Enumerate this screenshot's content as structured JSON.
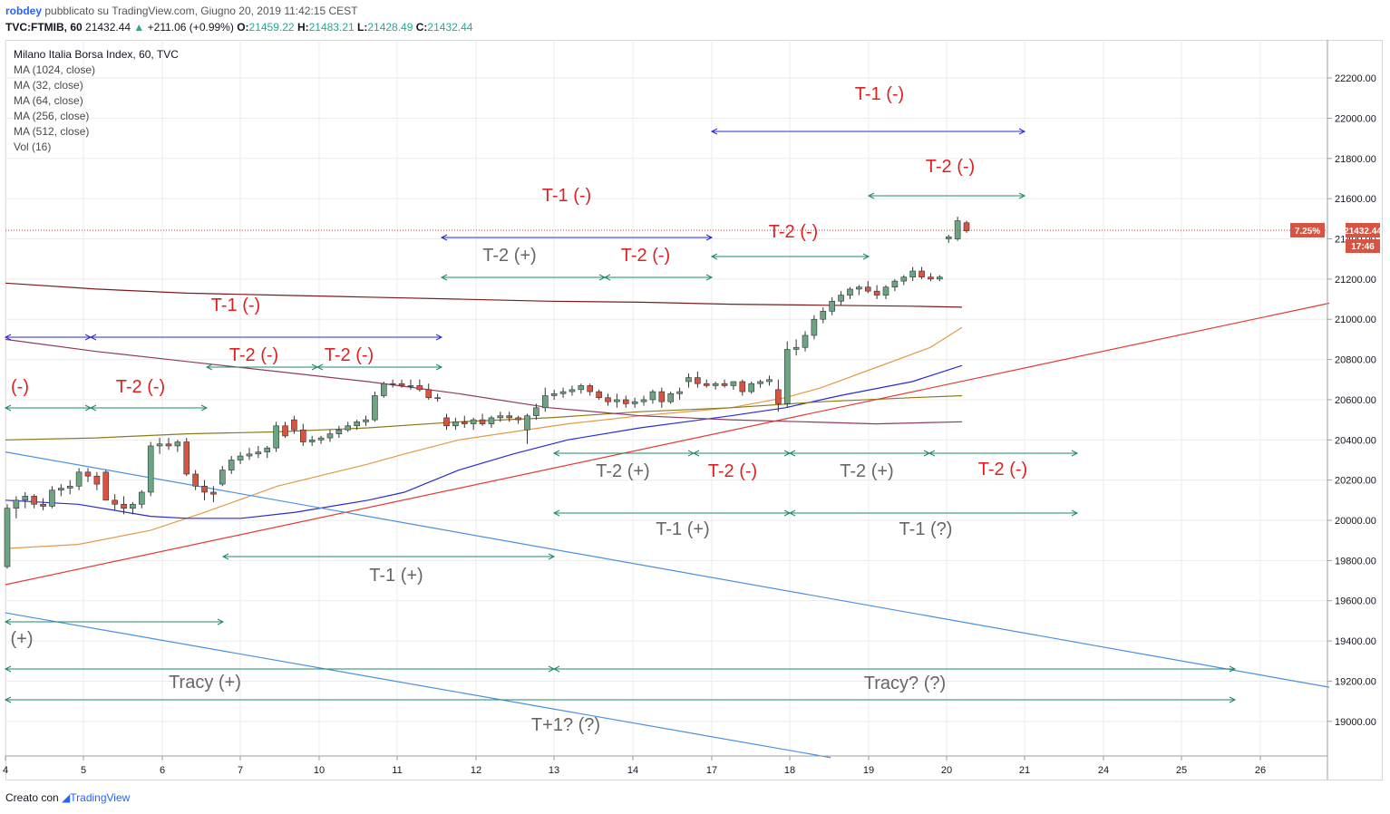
{
  "header": {
    "author": "robdey",
    "published": "pubblicato su TradingView.com, Giugno 20, 2019 11:42:15 CEST"
  },
  "quote": {
    "symbol": "TVC:FTMIB, 60",
    "last": "21432.44",
    "arrow": "▲",
    "change": "+211.06 (+0.99%)",
    "o_label": "O:",
    "o": "21459.22",
    "h_label": "H:",
    "h": "21483.21",
    "l_label": "L:",
    "l": "21428.49",
    "c_label": "C:",
    "c": "21432.44"
  },
  "legend": {
    "title": "Milano Italia Borsa Index, 60, TVC",
    "items": [
      "MA (1024, close)",
      "MA (32, close)",
      "MA (64, close)",
      "MA (256, close)",
      "MA (512, close)",
      "Vol (16)"
    ]
  },
  "price_tag": {
    "pct": "7.25%",
    "price": "21432.44",
    "countdown": "17:46"
  },
  "footer": {
    "prefix": "Creato con",
    "brand": "TradingView"
  },
  "colors": {
    "up": "#6ba583",
    "down": "#d75442",
    "grid": "#ebebeb",
    "ma1024": "#7b1c1c",
    "ma32": "#e39a45",
    "ma64": "#2a2ad6",
    "ma256": "#8b7a1a",
    "ma512": "#8e3a64",
    "trend_red": "#e53935",
    "trend_blue": "#4a90e2",
    "ann_red": "#e02020",
    "ann_gray": "#666666",
    "arrow_green": "#1e8a64",
    "arrow_blue": "#2a2ad6"
  },
  "chart_data": {
    "type": "candlestick",
    "title": "Milano Italia Borsa Index, 60, TVC",
    "x_ticks": [
      "4",
      "5",
      "6",
      "7",
      "10",
      "11",
      "12",
      "13",
      "14",
      "17",
      "18",
      "19",
      "20",
      "21",
      "24",
      "25",
      "26"
    ],
    "y_ticks": [
      "19000.00",
      "19200.00",
      "19400.00",
      "19600.00",
      "19800.00",
      "20000.00",
      "20200.00",
      "20400.00",
      "20600.00",
      "20800.00",
      "21000.00",
      "21200.00",
      "21400.00",
      "21600.00",
      "21800.00",
      "22000.00",
      "22200.00"
    ],
    "ylim": [
      18820,
      22350
    ],
    "last_price": 21432.44,
    "candles": [
      [
        19770,
        20080,
        19760,
        20060
      ],
      [
        20060,
        20120,
        20010,
        20100
      ],
      [
        20100,
        20140,
        20060,
        20120
      ],
      [
        20120,
        20130,
        20060,
        20080
      ],
      [
        20080,
        20110,
        20050,
        20070
      ],
      [
        20070,
        20170,
        20060,
        20150
      ],
      [
        20150,
        20180,
        20120,
        20160
      ],
      [
        20160,
        20200,
        20130,
        20170
      ],
      [
        20170,
        20260,
        20150,
        20240
      ],
      [
        20240,
        20260,
        20190,
        20220
      ],
      [
        20220,
        20240,
        20150,
        20180
      ],
      [
        20240,
        20250,
        20120,
        20100
      ],
      [
        20100,
        20130,
        20050,
        20080
      ],
      [
        20080,
        20120,
        20030,
        20060
      ],
      [
        20060,
        20090,
        20030,
        20080
      ],
      [
        20080,
        20150,
        20060,
        20140
      ],
      [
        20140,
        20390,
        20120,
        20370
      ],
      [
        20370,
        20410,
        20330,
        20380
      ],
      [
        20380,
        20410,
        20350,
        20370
      ],
      [
        20370,
        20400,
        20340,
        20390
      ],
      [
        20390,
        20410,
        20220,
        20230
      ],
      [
        20230,
        20250,
        20150,
        20170
      ],
      [
        20170,
        20200,
        20100,
        20140
      ],
      [
        20140,
        20170,
        20090,
        20130
      ],
      [
        20180,
        20270,
        20170,
        20250
      ],
      [
        20250,
        20320,
        20230,
        20300
      ],
      [
        20300,
        20340,
        20280,
        20320
      ],
      [
        20320,
        20360,
        20300,
        20330
      ],
      [
        20330,
        20370,
        20310,
        20340
      ],
      [
        20340,
        20370,
        20310,
        20360
      ],
      [
        20360,
        20490,
        20340,
        20470
      ],
      [
        20470,
        20490,
        20410,
        20420
      ],
      [
        20500,
        20520,
        20430,
        20450
      ],
      [
        20450,
        20480,
        20370,
        20390
      ],
      [
        20390,
        20420,
        20370,
        20400
      ],
      [
        20400,
        20420,
        20380,
        20410
      ],
      [
        20410,
        20450,
        20390,
        20430
      ],
      [
        20430,
        20470,
        20410,
        20450
      ],
      [
        20450,
        20490,
        20440,
        20470
      ],
      [
        20470,
        20500,
        20450,
        20490
      ],
      [
        20490,
        20520,
        20470,
        20500
      ],
      [
        20500,
        20640,
        20490,
        20620
      ],
      [
        20620,
        20690,
        20610,
        20680
      ],
      [
        20680,
        20700,
        20660,
        20680
      ],
      [
        20680,
        20700,
        20660,
        20670
      ],
      [
        20670,
        20700,
        20650,
        20670
      ],
      [
        20670,
        20700,
        20640,
        20650
      ],
      [
        20650,
        20680,
        20600,
        20610
      ],
      [
        20610,
        20630,
        20590,
        20610
      ],
      [
        20510,
        20530,
        20450,
        20470
      ],
      [
        20470,
        20510,
        20450,
        20490
      ],
      [
        20490,
        20520,
        20460,
        20480
      ],
      [
        20480,
        20510,
        20450,
        20500
      ],
      [
        20500,
        20530,
        20470,
        20480
      ],
      [
        20480,
        20520,
        20460,
        20510
      ],
      [
        20510,
        20540,
        20490,
        20520
      ],
      [
        20520,
        20540,
        20490,
        20510
      ],
      [
        20510,
        20520,
        20480,
        20500
      ],
      [
        20450,
        20530,
        20380,
        20520
      ],
      [
        20520,
        20580,
        20500,
        20560
      ],
      [
        20560,
        20660,
        20540,
        20620
      ],
      [
        20620,
        20650,
        20600,
        20630
      ],
      [
        20630,
        20660,
        20610,
        20640
      ],
      [
        20640,
        20670,
        20620,
        20650
      ],
      [
        20650,
        20680,
        20630,
        20670
      ],
      [
        20670,
        20680,
        20620,
        20640
      ],
      [
        20640,
        20650,
        20600,
        20610
      ],
      [
        20610,
        20630,
        20570,
        20590
      ],
      [
        20590,
        20630,
        20560,
        20600
      ],
      [
        20600,
        20620,
        20560,
        20580
      ],
      [
        20580,
        20610,
        20560,
        20590
      ],
      [
        20590,
        20620,
        20570,
        20600
      ],
      [
        20600,
        20650,
        20580,
        20640
      ],
      [
        20640,
        20660,
        20560,
        20590
      ],
      [
        20590,
        20640,
        20580,
        20630
      ],
      [
        20630,
        20660,
        20600,
        20640
      ],
      [
        20690,
        20730,
        20660,
        20710
      ],
      [
        20710,
        20740,
        20660,
        20680
      ],
      [
        20680,
        20700,
        20660,
        20670
      ],
      [
        20670,
        20690,
        20650,
        20680
      ],
      [
        20680,
        20700,
        20660,
        20670
      ],
      [
        20670,
        20690,
        20650,
        20690
      ],
      [
        20690,
        20700,
        20620,
        20640
      ],
      [
        20640,
        20690,
        20630,
        20680
      ],
      [
        20680,
        20700,
        20660,
        20690
      ],
      [
        20690,
        20720,
        20670,
        20700
      ],
      [
        20650,
        20700,
        20540,
        20580
      ],
      [
        20580,
        20890,
        20560,
        20850
      ],
      [
        20850,
        20900,
        20820,
        20860
      ],
      [
        20860,
        20940,
        20840,
        20920
      ],
      [
        20920,
        21020,
        20900,
        21000
      ],
      [
        21000,
        21060,
        20980,
        21040
      ],
      [
        21040,
        21110,
        21020,
        21090
      ],
      [
        21090,
        21140,
        21070,
        21120
      ],
      [
        21120,
        21160,
        21100,
        21150
      ],
      [
        21150,
        21170,
        21120,
        21160
      ],
      [
        21160,
        21190,
        21130,
        21140
      ],
      [
        21140,
        21170,
        21100,
        21120
      ],
      [
        21120,
        21170,
        21100,
        21160
      ],
      [
        21160,
        21200,
        21140,
        21190
      ],
      [
        21190,
        21220,
        21170,
        21210
      ],
      [
        21210,
        21260,
        21190,
        21240
      ],
      [
        21240,
        21260,
        21200,
        21210
      ],
      [
        21210,
        21230,
        21190,
        21200
      ],
      [
        21200,
        21220,
        21190,
        21210
      ],
      [
        21400,
        21420,
        21380,
        21410
      ],
      [
        21400,
        21510,
        21390,
        21490
      ],
      [
        21480,
        21490,
        21430,
        21440
      ]
    ],
    "moving_averages": [
      {
        "name": "MA (1024, close)",
        "points": [
          [
            0,
            21180
          ],
          [
            100,
            21150
          ],
          [
            200,
            21130
          ],
          [
            300,
            21120
          ],
          [
            400,
            21110
          ],
          [
            500,
            21100
          ],
          [
            600,
            21090
          ],
          [
            700,
            21085
          ],
          [
            800,
            21075
          ],
          [
            900,
            21070
          ],
          [
            1000,
            21065
          ],
          [
            1055,
            21060
          ]
        ]
      },
      {
        "name": "MA (32, close)",
        "points": [
          [
            0,
            19860
          ],
          [
            80,
            19880
          ],
          [
            160,
            19950
          ],
          [
            220,
            20040
          ],
          [
            300,
            20170
          ],
          [
            400,
            20280
          ],
          [
            440,
            20330
          ],
          [
            500,
            20400
          ],
          [
            560,
            20440
          ],
          [
            620,
            20480
          ],
          [
            700,
            20520
          ],
          [
            800,
            20560
          ],
          [
            860,
            20610
          ],
          [
            900,
            20660
          ],
          [
            960,
            20760
          ],
          [
            1020,
            20860
          ],
          [
            1055,
            20960
          ]
        ]
      },
      {
        "name": "MA (64, close)",
        "points": [
          [
            0,
            20100
          ],
          [
            80,
            20080
          ],
          [
            160,
            20020
          ],
          [
            200,
            20010
          ],
          [
            260,
            20010
          ],
          [
            320,
            20040
          ],
          [
            400,
            20100
          ],
          [
            440,
            20140
          ],
          [
            500,
            20250
          ],
          [
            560,
            20330
          ],
          [
            620,
            20400
          ],
          [
            700,
            20460
          ],
          [
            800,
            20520
          ],
          [
            860,
            20560
          ],
          [
            920,
            20620
          ],
          [
            1000,
            20690
          ],
          [
            1055,
            20770
          ]
        ]
      },
      {
        "name": "MA (256, close)",
        "points": [
          [
            0,
            20400
          ],
          [
            100,
            20410
          ],
          [
            200,
            20430
          ],
          [
            300,
            20440
          ],
          [
            400,
            20460
          ],
          [
            500,
            20490
          ],
          [
            600,
            20510
          ],
          [
            700,
            20540
          ],
          [
            800,
            20560
          ],
          [
            900,
            20590
          ],
          [
            1000,
            20610
          ],
          [
            1055,
            20620
          ]
        ]
      },
      {
        "name": "MA (512, close)",
        "points": [
          [
            0,
            20900
          ],
          [
            100,
            20840
          ],
          [
            200,
            20790
          ],
          [
            300,
            20740
          ],
          [
            400,
            20690
          ],
          [
            500,
            20630
          ],
          [
            600,
            20560
          ],
          [
            700,
            20520
          ],
          [
            800,
            20500
          ],
          [
            880,
            20490
          ],
          [
            960,
            20480
          ],
          [
            1055,
            20490
          ]
        ]
      }
    ],
    "trend_lines": [
      {
        "color": "red",
        "from": [
          0,
          19680
        ],
        "to": [
          1460,
          21080
        ]
      },
      {
        "color": "blue",
        "from": [
          0,
          20340
        ],
        "to": [
          1460,
          19170
        ]
      },
      {
        "color": "blue",
        "from": [
          0,
          19540
        ],
        "to": [
          910,
          18820
        ]
      }
    ]
  },
  "annotations": [
    {
      "text": "T-1 (-)",
      "color": "red"
    },
    {
      "text": "T-2 (-)",
      "color": "red"
    },
    {
      "text": "T-1 (-)",
      "color": "red"
    },
    {
      "text": "T-2 (+)",
      "color": "gray"
    },
    {
      "text": "T-2 (-)",
      "color": "red"
    },
    {
      "text": "T-2 (-)",
      "color": "red"
    },
    {
      "text": "T-1 (-)",
      "color": "red"
    },
    {
      "text": "T-2 (-)",
      "color": "red"
    },
    {
      "text": "T-2 (-)",
      "color": "red"
    },
    {
      "text": "(-)",
      "color": "red"
    },
    {
      "text": "T-2 (-)",
      "color": "red"
    },
    {
      "text": "T-2 (+)",
      "color": "gray"
    },
    {
      "text": "T-2 (-)",
      "color": "red"
    },
    {
      "text": "T-2 (+)",
      "color": "gray"
    },
    {
      "text": "T-2 (-)",
      "color": "red"
    },
    {
      "text": "T-1 (+)",
      "color": "gray"
    },
    {
      "text": "T-1 (?)",
      "color": "gray"
    },
    {
      "text": "T-1 (+)",
      "color": "gray"
    },
    {
      "text": "(+)",
      "color": "gray"
    },
    {
      "text": "Tracy (+)",
      "color": "gray"
    },
    {
      "text": "Tracy? (?)",
      "color": "gray"
    },
    {
      "text": "T+1? (?)",
      "color": "gray"
    }
  ]
}
